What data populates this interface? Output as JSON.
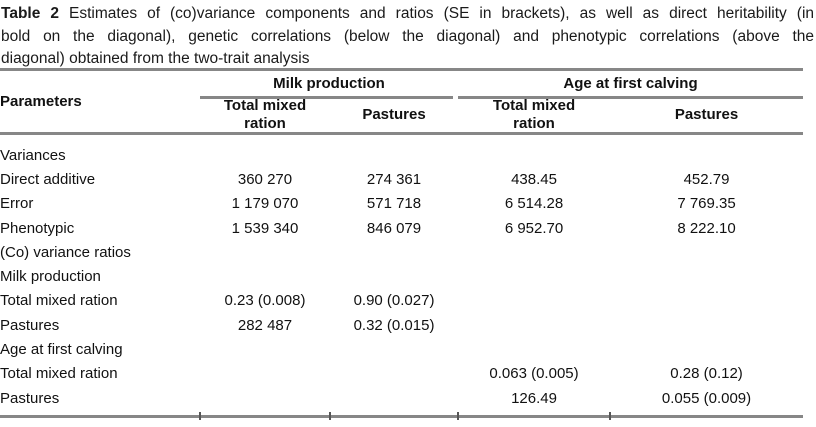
{
  "caption": {
    "label": "Table 2",
    "lines": [
      "Estimates of (co)variance components and ratios (SE in brackets), as well as direct heritability (in",
      "bold on the diagonal), genetic correlations (below the diagonal) and phenotypic correlations (above the",
      "diagonal) obtained from the two-trait analysis"
    ]
  },
  "table": {
    "header": {
      "parameters": "Parameters",
      "groups": [
        {
          "label": "Milk production"
        },
        {
          "label": "Age at first calving"
        }
      ],
      "subheaders": [
        "Total mixed ration",
        "Pastures",
        "Total mixed ration",
        "Pastures"
      ]
    },
    "rows": [
      {
        "label": "Variances",
        "indent": 0,
        "cells": [
          "",
          "",
          "",
          ""
        ]
      },
      {
        "label": "Direct additive",
        "indent": 1,
        "cells": [
          "360 270",
          "274 361",
          "438.45",
          "452.79"
        ]
      },
      {
        "label": "Error",
        "indent": 1,
        "cells": [
          "1 179 070",
          "571 718",
          "6 514.28",
          "7 769.35"
        ]
      },
      {
        "label": "Phenotypic",
        "indent": 1,
        "cells": [
          "1 539 340",
          "846 079",
          "6 952.70",
          "8 222.10"
        ]
      },
      {
        "label": "(Co) variance ratios",
        "indent": 0,
        "cells": [
          "",
          "",
          "",
          ""
        ]
      },
      {
        "label": "Milk production",
        "indent": 0,
        "cells": [
          "",
          "",
          "",
          ""
        ]
      },
      {
        "label": "Total mixed ration",
        "indent": 1,
        "cells": [
          "0.23 (0.008)",
          "0.90 (0.027)",
          "",
          ""
        ]
      },
      {
        "label": "Pastures",
        "indent": 1,
        "cells": [
          "282 487",
          "0.32 (0.015)",
          "",
          ""
        ]
      },
      {
        "label": "Age at first calving",
        "indent": 0,
        "cells": [
          "",
          "",
          "",
          ""
        ]
      },
      {
        "label": "Total mixed ration",
        "indent": 1,
        "cells": [
          "",
          "",
          "0.063 (0.005)",
          "0.28 (0.12)"
        ]
      },
      {
        "label": "Pastures",
        "indent": 1,
        "cells": [
          "",
          "",
          "126.49",
          "0.055 (0.009)"
        ]
      }
    ]
  },
  "style": {
    "rule_color": "#878787",
    "text_color": "#141414",
    "background": "#ffffff"
  }
}
